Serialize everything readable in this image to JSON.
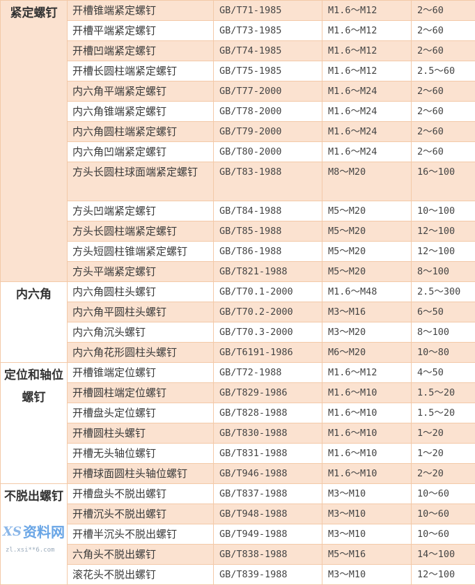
{
  "groups": [
    {
      "category": "紧定螺钉",
      "shaded": true,
      "rows": [
        [
          "开槽锥端紧定螺钉",
          "GB/T71-1985",
          "M1.6～M12",
          "2～60"
        ],
        [
          "开槽平端紧定螺钉",
          "GB/T73-1985",
          "M1.6～M12",
          "2～60"
        ],
        [
          "开槽凹端紧定螺钉",
          "GB/T74-1985",
          "M1.6～M12",
          "2～60"
        ],
        [
          "开槽长圆柱端紧定螺钉",
          "GB/T75-1985",
          "M1.6～M12",
          "2.5～60"
        ],
        [
          "内六角平端紧定螺钉",
          "GB/T77-2000",
          "M1.6～M24",
          "2～60"
        ],
        [
          "内六角锥端紧定螺钉",
          "GB/T78-2000",
          "M1.6～M24",
          "2～60"
        ],
        [
          "内六角圆柱端紧定螺钉",
          "GB/T79-2000",
          "M1.6～M24",
          "2～60"
        ],
        [
          "内六角凹端紧定螺钉",
          "GB/T80-2000",
          "M1.6～M24",
          "2～60"
        ],
        [
          "方头长圆柱球面端紧定螺钉",
          "GB/T83-1988",
          "M8～M20",
          "16～100"
        ],
        [
          "方头凹端紧定螺钉",
          "GB/T84-1988",
          "M5～M20",
          "10～100"
        ],
        [
          "方头长圆柱端紧定螺钉",
          "GB/T85-1988",
          "M5～M20",
          "12～100"
        ],
        [
          "方头短圆柱锥端紧定螺钉",
          "GB/T86-1988",
          "M5～M20",
          "12～100"
        ],
        [
          "方头平端紧定螺钉",
          "GB/T821-1988",
          "M5～M20",
          "8～100"
        ]
      ]
    },
    {
      "category": "内六角",
      "shaded": false,
      "rows": [
        [
          "内六角圆柱头螺钉",
          "GB/T70.1-2000",
          "M1.6～M48",
          "2.5～300"
        ],
        [
          "内六角平圆柱头螺钉",
          "GB/T70.2-2000",
          "M3～M16",
          "6～50"
        ],
        [
          "内六角沉头螺钉",
          "GB/T70.3-2000",
          "M3～M20",
          "8～100"
        ],
        [
          "内六角花形圆柱头螺钉",
          "GB/T6191-1986",
          "M6～M20",
          "10～80"
        ]
      ]
    },
    {
      "category": "定位和轴位螺钉",
      "shaded": false,
      "rows": [
        [
          "开槽锥端定位螺钉",
          "GB/T72-1988",
          "M1.6～M12",
          "4～50"
        ],
        [
          "开槽圆柱端定位螺钉",
          "GB/T829-1986",
          "M1.6～M10",
          "1.5～20"
        ],
        [
          "开槽盘头定位螺钉",
          "GB/T828-1988",
          "M1.6～M10",
          "1.5～20"
        ],
        [
          "开槽圆柱头螺钉",
          "GB/T830-1988",
          "M1.6～M10",
          "1～20"
        ],
        [
          "开槽无头轴位螺钉",
          "GB/T831-1988",
          "M1.6～M10",
          "1～20"
        ],
        [
          "开槽球面圆柱头轴位螺钉",
          "GB/T946-1988",
          "M1.6～M10",
          "2～20"
        ]
      ]
    },
    {
      "category": "不脱出螺钉",
      "shaded": false,
      "rows": [
        [
          "开槽盘头不脱出螺钉",
          "GB/T837-1988",
          "M3～M10",
          "10～60"
        ],
        [
          "开槽沉头不脱出螺钉",
          "GB/T948-1988",
          "M3～M10",
          "10～60"
        ],
        [
          "开槽半沉头不脱出螺钉",
          "GB/T949-1988",
          "M3～M10",
          "10～60"
        ],
        [
          "六角头不脱出螺钉",
          "GB/T838-1988",
          "M5～M16",
          "14～100"
        ],
        [
          "滚花头不脱出螺钉",
          "GB/T839-1988",
          "M3～M10",
          "12～100"
        ]
      ]
    }
  ],
  "watermark": {
    "logo": "XS",
    "text": "资料网",
    "url": "zl.xsi**6.com"
  },
  "colors": {
    "shade": "#fbe2d0",
    "border": "#f3c9a8"
  }
}
